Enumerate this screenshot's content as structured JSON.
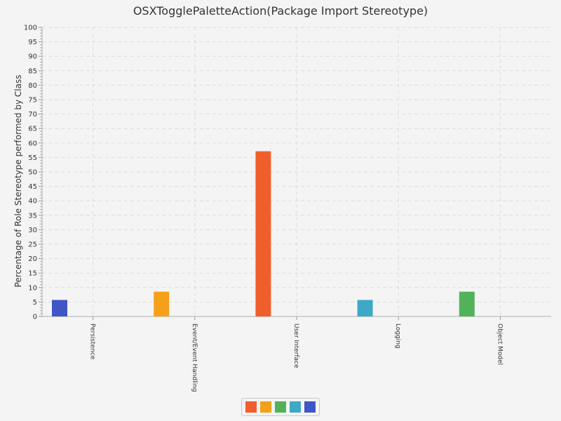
{
  "chart_data": {
    "type": "bar",
    "title": "OSXTogglePaletteAction(Package Import Stereotype)",
    "xlabel": "",
    "ylabel": "Percentage of Role Stereotype performed by Class",
    "ylim": [
      0,
      100
    ],
    "ytick_step": 5,
    "grid": true,
    "legend_position": "bottom",
    "categories": [
      "Persistence",
      "Event/Event Handling",
      "User Interface",
      "Logging",
      "Object Model"
    ],
    "values": [
      5.71,
      8.57,
      57.14,
      5.71,
      8.57
    ],
    "bar_colors": [
      "#4056c6",
      "#f6a01a",
      "#f05e2b",
      "#3da9c7",
      "#52b25a"
    ],
    "legend_colors": [
      "#f05e2b",
      "#f6a01a",
      "#52b25a",
      "#3da9c7",
      "#4056c6"
    ]
  }
}
